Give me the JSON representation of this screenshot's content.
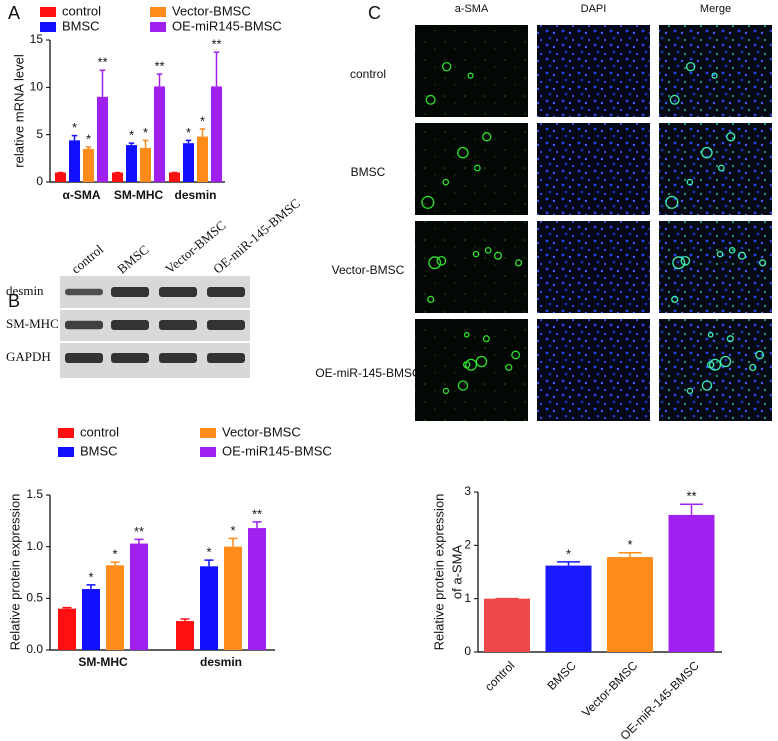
{
  "panel_labels": [
    "A",
    "B",
    "C"
  ],
  "chart_data": [
    {
      "type": "bar",
      "ylabel": "relative mRNA level",
      "categories": [
        "α-SMA",
        "SM-MHC",
        "desmin"
      ],
      "series": [
        {
          "name": "control",
          "color": "#ff1010",
          "values": [
            1,
            1,
            1
          ],
          "errors": [
            0,
            0,
            0
          ],
          "significance": [
            null,
            null,
            null
          ]
        },
        {
          "name": "BMSC",
          "color": "#1010ff",
          "values": [
            4.4,
            3.9,
            4.1
          ],
          "errors": [
            0.5,
            0.2,
            0.3
          ],
          "significance": [
            "*",
            "*",
            "*"
          ]
        },
        {
          "name": "Vector-BMSC",
          "color": "#ff8c1a",
          "values": [
            3.5,
            3.6,
            4.8
          ],
          "errors": [
            0.2,
            0.8,
            0.8
          ],
          "significance": [
            "*",
            "*",
            "*"
          ]
        },
        {
          "name": "OE-miR145-BMSC",
          "color": "#a020f0",
          "values": [
            9.0,
            10.1,
            10.1
          ],
          "errors": [
            2.8,
            1.3,
            3.6
          ],
          "significance": [
            "**",
            "**",
            "**"
          ]
        }
      ],
      "ylim": [
        0,
        15
      ],
      "yticks": [
        0,
        5,
        10,
        15
      ]
    },
    {
      "type": "bar",
      "ylabel": "Relative protein expression",
      "categories": [
        "SM-MHC",
        "desmin"
      ],
      "series": [
        {
          "name": "control",
          "color": "#ff1010",
          "values": [
            0.4,
            0.28
          ],
          "errors": [
            0.01,
            0.02
          ],
          "significance": [
            null,
            null
          ]
        },
        {
          "name": "BMSC",
          "color": "#1010ff",
          "values": [
            0.59,
            0.81
          ],
          "errors": [
            0.04,
            0.06
          ],
          "significance": [
            "*",
            "*"
          ]
        },
        {
          "name": "Vector-BMSC",
          "color": "#ff8c1a",
          "values": [
            0.82,
            1.0
          ],
          "errors": [
            0.03,
            0.08
          ],
          "significance": [
            "*",
            "*"
          ]
        },
        {
          "name": "OE-miR145-BMSC",
          "color": "#a020f0",
          "values": [
            1.03,
            1.18
          ],
          "errors": [
            0.04,
            0.06
          ],
          "significance": [
            "**",
            "**"
          ]
        }
      ],
      "ylim": [
        0,
        1.5
      ],
      "yticks": [
        {
          "value": 0,
          "label": "0.0"
        },
        0.5,
        {
          "value": 1,
          "label": "1.0"
        },
        1.5
      ]
    },
    {
      "type": "bar",
      "ylabel": [
        "Relative protein expression",
        "of a-SMA"
      ],
      "categories": [
        "control",
        "BMSC",
        "Vector-BMSC",
        "OE-miR-145-BMSC"
      ],
      "values": [
        1.0,
        1.62,
        1.78,
        2.57
      ],
      "errors": [
        0,
        0.07,
        0.08,
        0.2
      ],
      "significance": [
        null,
        "*",
        "*",
        "**"
      ],
      "colors": [
        "#f04848",
        "#1a1aff",
        "#ff8c1a",
        "#a020f0"
      ],
      "ylim": [
        0,
        3
      ],
      "yticks": [
        0,
        1,
        2,
        3
      ]
    }
  ],
  "blot": {
    "lanes": [
      "control",
      "BMSC",
      "Vector-BMSC",
      "OE-miR-145-BMSC"
    ],
    "rows": [
      "desmin",
      "SM-MHC",
      "GAPDH"
    ]
  },
  "micrographs": {
    "columns": [
      "a-SMA",
      "DAPI",
      "Merge"
    ],
    "rows": [
      "control",
      "BMSC",
      "Vector-BMSC",
      "OE-miR-145-BMSC"
    ]
  }
}
